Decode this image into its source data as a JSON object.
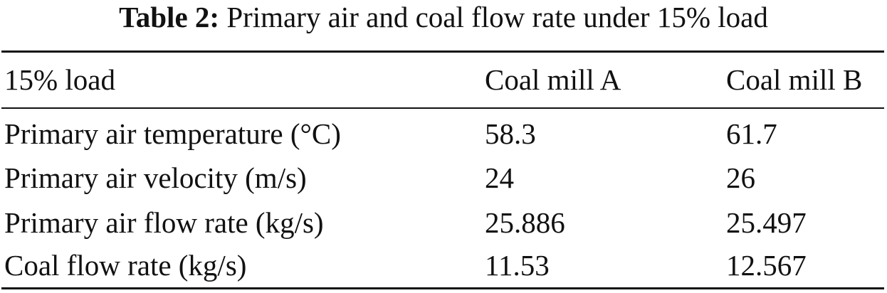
{
  "caption": {
    "label": "Table 2:",
    "text": "Primary air and coal flow rate under 15% load"
  },
  "table": {
    "headers": [
      "15% load",
      "Coal mill A",
      "Coal mill B"
    ],
    "rows": [
      [
        "Primary air temperature (°C)",
        "58.3",
        "61.7"
      ],
      [
        "Primary air velocity (m/s)",
        "24",
        "26"
      ],
      [
        "Primary air flow rate (kg/s)",
        "25.886",
        "25.497"
      ],
      [
        "Coal flow rate (kg/s)",
        "11.53",
        "12.567"
      ]
    ]
  }
}
